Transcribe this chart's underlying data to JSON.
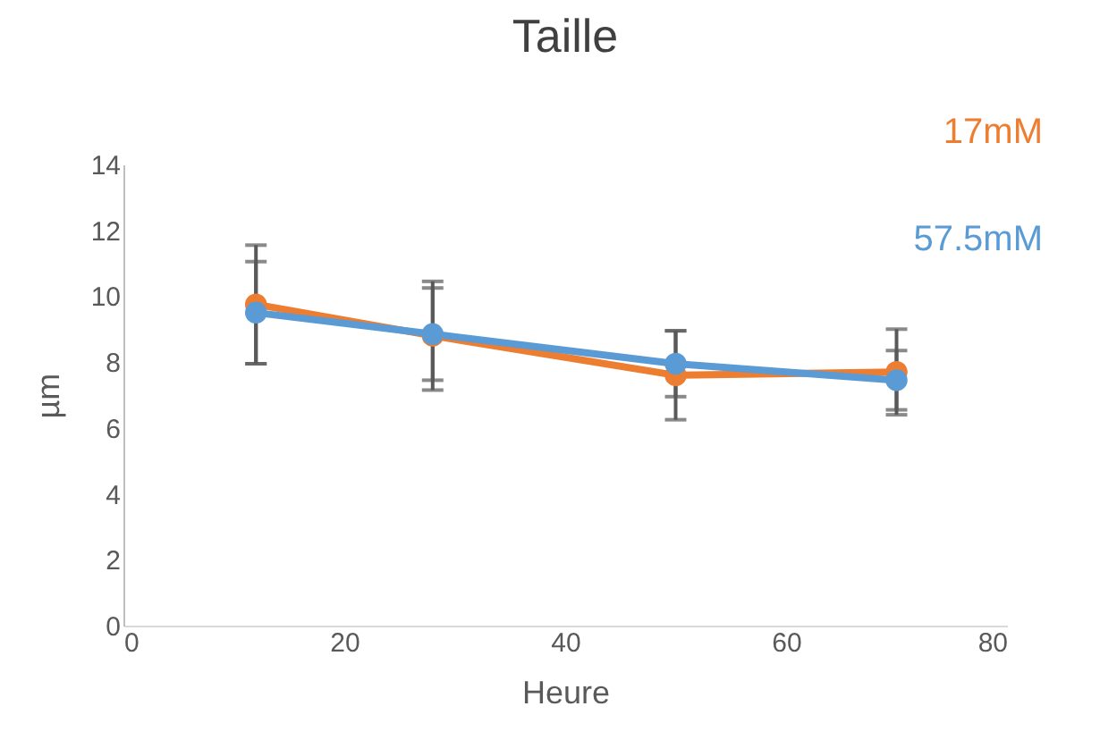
{
  "chart_data": {
    "type": "line",
    "title": "Taille",
    "xlabel": "Heure",
    "ylabel": "µm",
    "x": [
      12,
      28,
      50,
      70
    ],
    "series": [
      {
        "name": "17mM",
        "color": "#ed7d31",
        "values": [
          9.75,
          8.8,
          7.6,
          7.7
        ],
        "errors": [
          1.8,
          1.65,
          1.35,
          1.3
        ]
      },
      {
        "name": "57.5mM",
        "color": "#5b9bd5",
        "values": [
          9.5,
          8.85,
          7.95,
          7.45
        ],
        "errors": [
          1.55,
          1.4,
          1.0,
          0.9
        ]
      }
    ],
    "xlim": [
      0,
      80
    ],
    "xticks": [
      0,
      20,
      40,
      60,
      80
    ],
    "ylim": [
      0,
      14
    ],
    "yticks": [
      0,
      2,
      4,
      6,
      8,
      10,
      12,
      14
    ],
    "grid": false,
    "legend": "top right",
    "marker": "circle",
    "line_style": "solid"
  }
}
